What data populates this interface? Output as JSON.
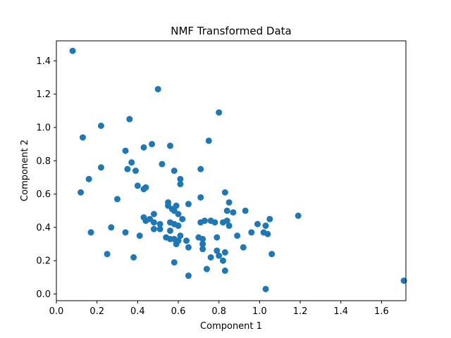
{
  "chart_data": {
    "type": "scatter",
    "title": "NMF Transformed Data",
    "xlabel": "Component 1",
    "ylabel": "Component 2",
    "xlim": [
      0.0,
      1.72
    ],
    "ylim": [
      -0.04,
      1.52
    ],
    "xticks": [
      0.0,
      0.2,
      0.4,
      0.6,
      0.8,
      1.0,
      1.2,
      1.4,
      1.6
    ],
    "xtick_labels": [
      "0.0",
      "0.2",
      "0.4",
      "0.6",
      "0.8",
      "1.0",
      "1.2",
      "1.4",
      "1.6"
    ],
    "yticks": [
      0.0,
      0.2,
      0.4,
      0.6,
      0.8,
      1.0,
      1.2,
      1.4
    ],
    "ytick_labels": [
      "0.0",
      "0.2",
      "0.4",
      "0.6",
      "0.8",
      "1.0",
      "1.2",
      "1.4"
    ],
    "grid": false,
    "marker_color": "#1f77b4",
    "points": [
      [
        0.08,
        1.46
      ],
      [
        0.5,
        1.23
      ],
      [
        0.8,
        1.09
      ],
      [
        0.22,
        1.01
      ],
      [
        0.36,
        1.05
      ],
      [
        0.13,
        0.94
      ],
      [
        0.75,
        0.92
      ],
      [
        0.47,
        0.9
      ],
      [
        0.43,
        0.88
      ],
      [
        0.56,
        0.89
      ],
      [
        0.34,
        0.86
      ],
      [
        0.37,
        0.79
      ],
      [
        0.22,
        0.76
      ],
      [
        0.35,
        0.75
      ],
      [
        0.39,
        0.74
      ],
      [
        0.52,
        0.78
      ],
      [
        0.58,
        0.74
      ],
      [
        0.71,
        0.75
      ],
      [
        0.16,
        0.69
      ],
      [
        0.61,
        0.69
      ],
      [
        0.61,
        0.66
      ],
      [
        0.4,
        0.65
      ],
      [
        0.44,
        0.64
      ],
      [
        0.43,
        0.63
      ],
      [
        0.12,
        0.61
      ],
      [
        0.83,
        0.61
      ],
      [
        0.71,
        0.58
      ],
      [
        0.3,
        0.57
      ],
      [
        0.85,
        0.55
      ],
      [
        0.55,
        0.55
      ],
      [
        0.65,
        0.54
      ],
      [
        0.55,
        0.53
      ],
      [
        0.59,
        0.53
      ],
      [
        0.57,
        0.51
      ],
      [
        0.58,
        0.5
      ],
      [
        0.84,
        0.5
      ],
      [
        0.87,
        0.49
      ],
      [
        0.93,
        0.5
      ],
      [
        0.6,
        0.48
      ],
      [
        0.48,
        0.48
      ],
      [
        1.19,
        0.47
      ],
      [
        0.43,
        0.46
      ],
      [
        0.46,
        0.45
      ],
      [
        0.62,
        0.45
      ],
      [
        1.05,
        0.45
      ],
      [
        0.44,
        0.44
      ],
      [
        0.73,
        0.44
      ],
      [
        0.76,
        0.44
      ],
      [
        0.78,
        0.43
      ],
      [
        0.82,
        0.43
      ],
      [
        0.84,
        0.44
      ],
      [
        0.71,
        0.43
      ],
      [
        0.48,
        0.43
      ],
      [
        0.51,
        0.42
      ],
      [
        0.56,
        0.43
      ],
      [
        0.58,
        0.42
      ],
      [
        0.6,
        0.41
      ],
      [
        0.85,
        0.41
      ],
      [
        0.99,
        0.42
      ],
      [
        1.03,
        0.41
      ],
      [
        0.27,
        0.4
      ],
      [
        0.48,
        0.39
      ],
      [
        0.51,
        0.39
      ],
      [
        0.56,
        0.38
      ],
      [
        0.96,
        0.37
      ],
      [
        1.02,
        0.37
      ],
      [
        1.04,
        0.36
      ],
      [
        0.34,
        0.37
      ],
      [
        0.17,
        0.37
      ],
      [
        0.41,
        0.35
      ],
      [
        0.61,
        0.35
      ],
      [
        0.54,
        0.34
      ],
      [
        0.56,
        0.33
      ],
      [
        0.58,
        0.33
      ],
      [
        0.6,
        0.32
      ],
      [
        0.64,
        0.32
      ],
      [
        0.7,
        0.34
      ],
      [
        0.72,
        0.33
      ],
      [
        0.79,
        0.34
      ],
      [
        0.89,
        0.35
      ],
      [
        0.59,
        0.3
      ],
      [
        0.72,
        0.3
      ],
      [
        0.72,
        0.27
      ],
      [
        0.65,
        0.28
      ],
      [
        0.92,
        0.28
      ],
      [
        0.79,
        0.26
      ],
      [
        0.83,
        0.25
      ],
      [
        0.8,
        0.23
      ],
      [
        0.25,
        0.24
      ],
      [
        1.06,
        0.24
      ],
      [
        0.38,
        0.22
      ],
      [
        0.76,
        0.22
      ],
      [
        0.82,
        0.2
      ],
      [
        0.58,
        0.19
      ],
      [
        0.74,
        0.15
      ],
      [
        0.83,
        0.14
      ],
      [
        0.65,
        0.11
      ],
      [
        1.71,
        0.08
      ],
      [
        1.03,
        0.03
      ]
    ]
  }
}
